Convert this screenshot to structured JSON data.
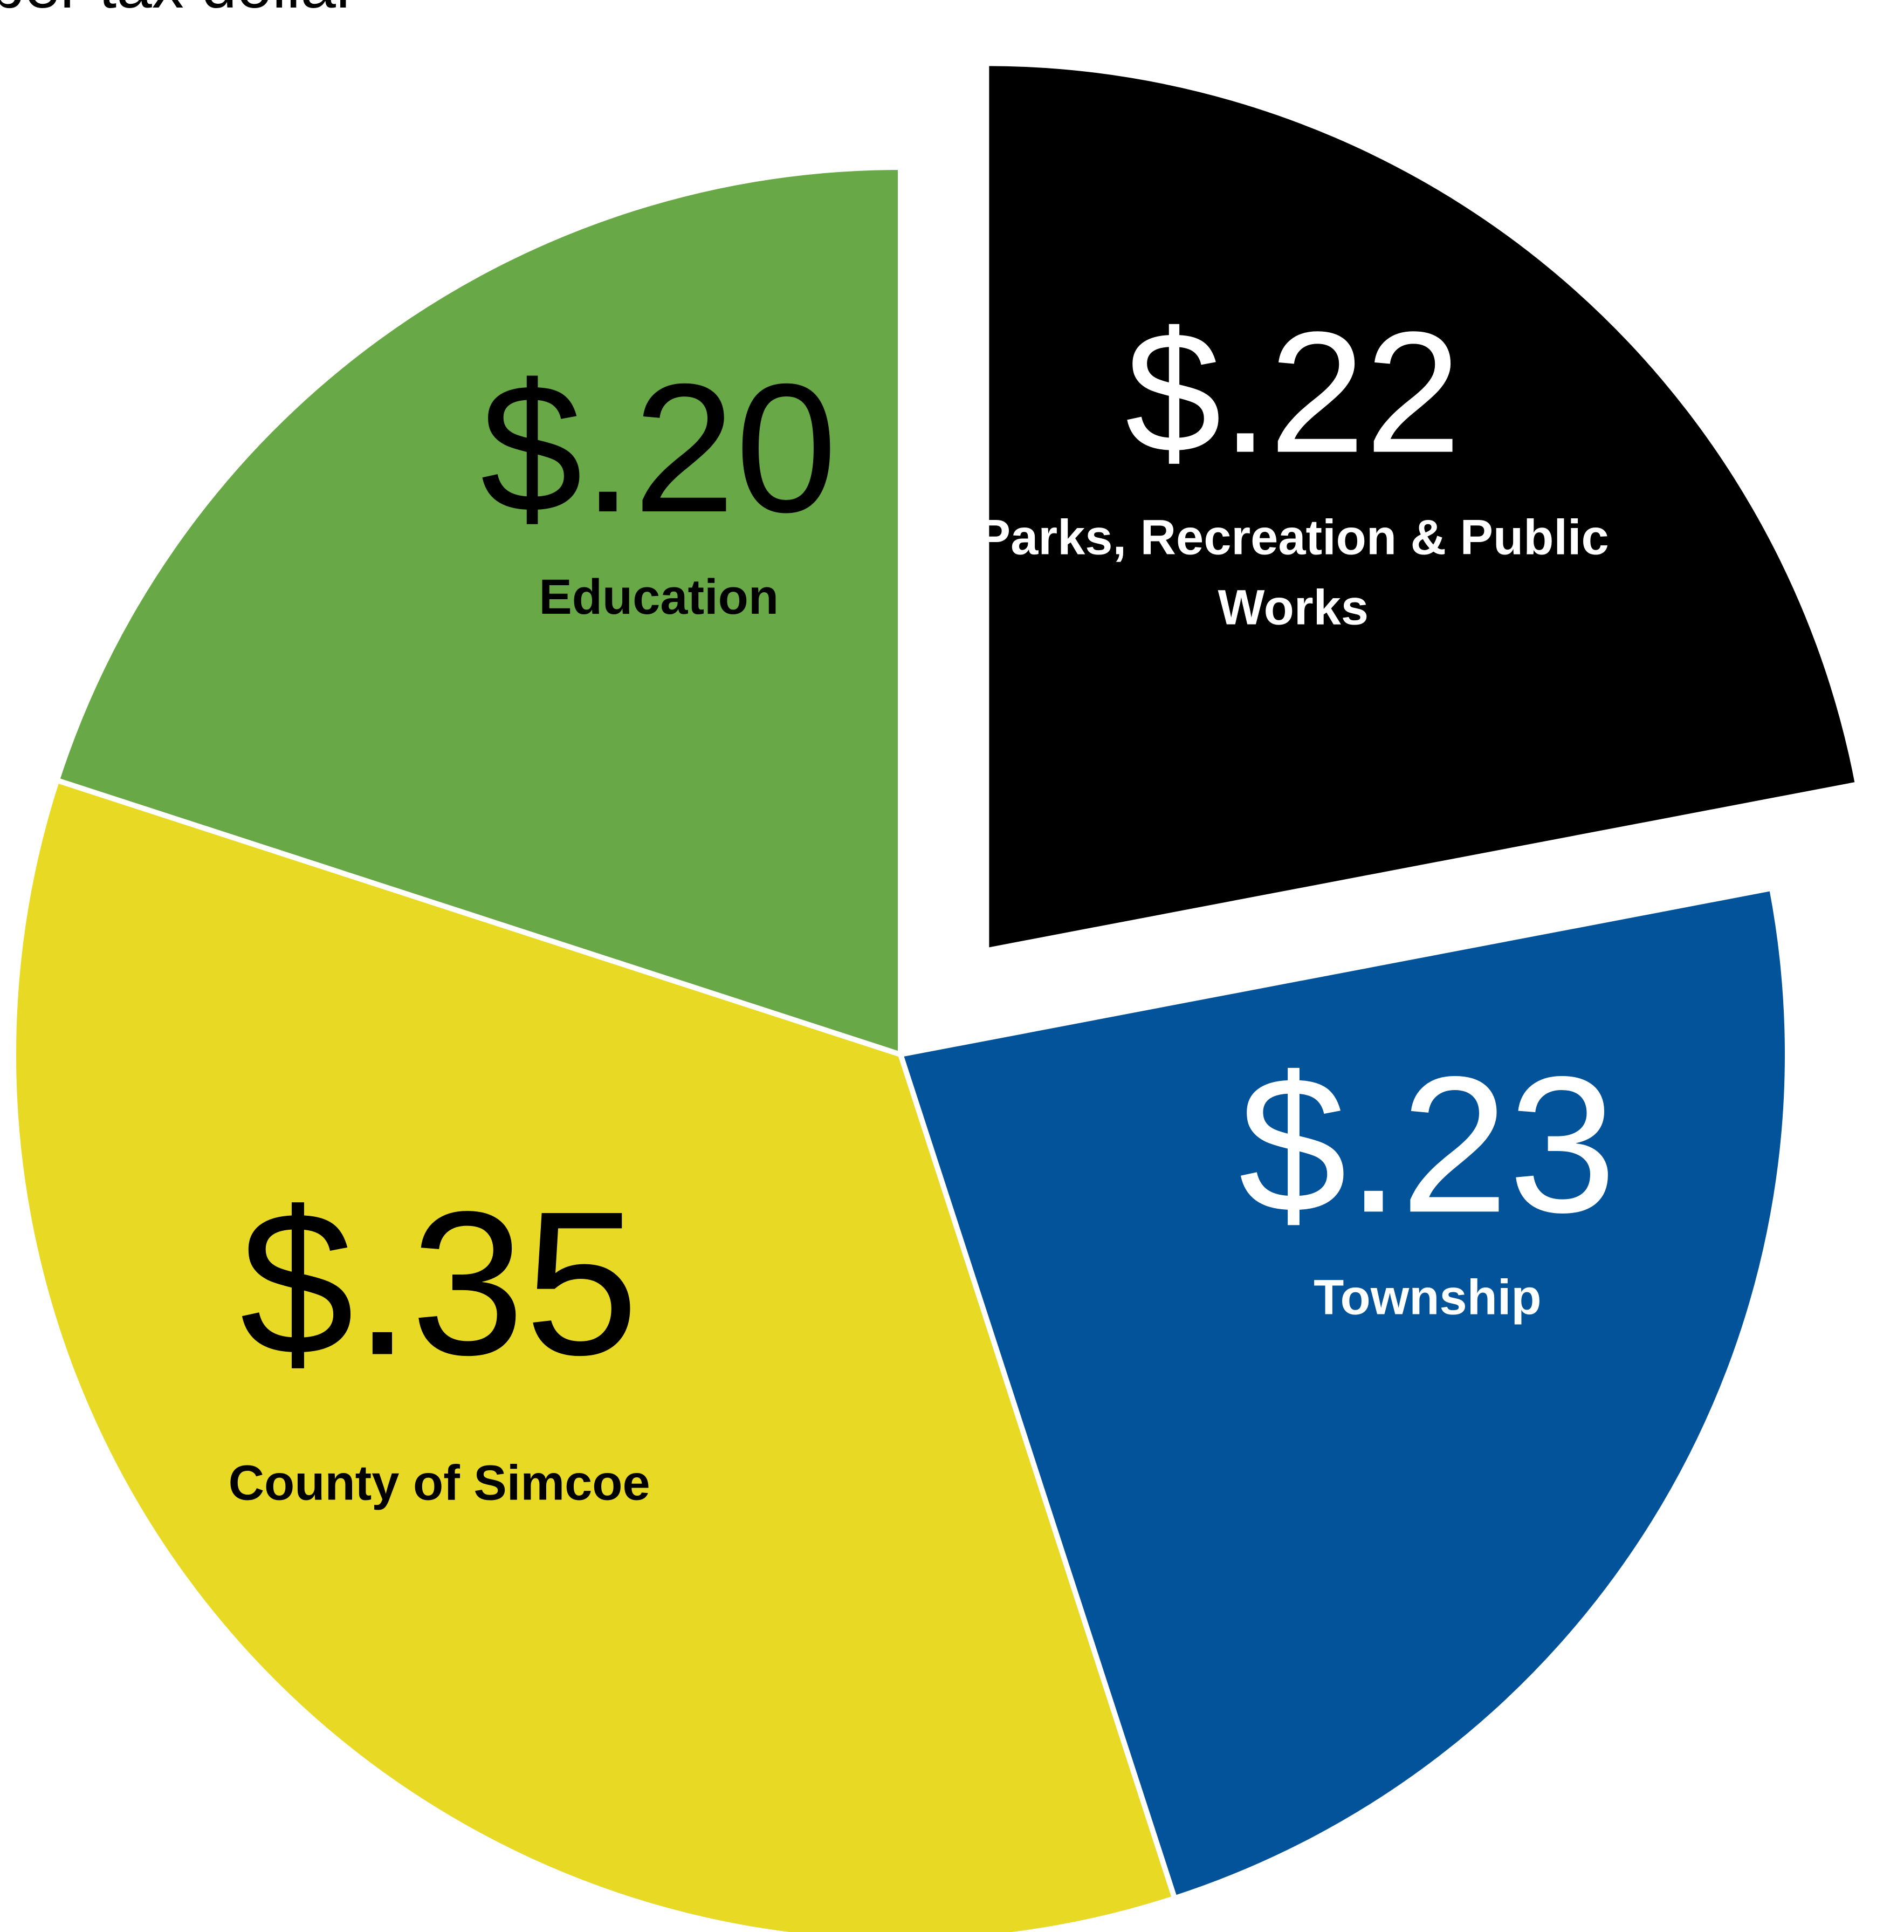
{
  "chart_data": {
    "type": "pie",
    "title": "per tax dollar",
    "unit": "$",
    "slices": [
      {
        "label": "Parks, Recreation & Public Works",
        "value": 0.22,
        "value_label": "$.22",
        "color": "#000000",
        "text_color": "#ffffff",
        "exploded": true
      },
      {
        "label": "Township",
        "value": 0.23,
        "value_label": "$.23",
        "color": "#03539b",
        "text_color": "#ffffff",
        "exploded": false
      },
      {
        "label": "County of Simcoe",
        "value": 0.35,
        "value_label": "$.35",
        "color": "#e8da24",
        "text_color": "#000000",
        "exploded": false
      },
      {
        "label": "Education",
        "value": 0.2,
        "value_label": "$.20",
        "color": "#69a846",
        "text_color": "#000000",
        "exploded": false
      }
    ]
  }
}
